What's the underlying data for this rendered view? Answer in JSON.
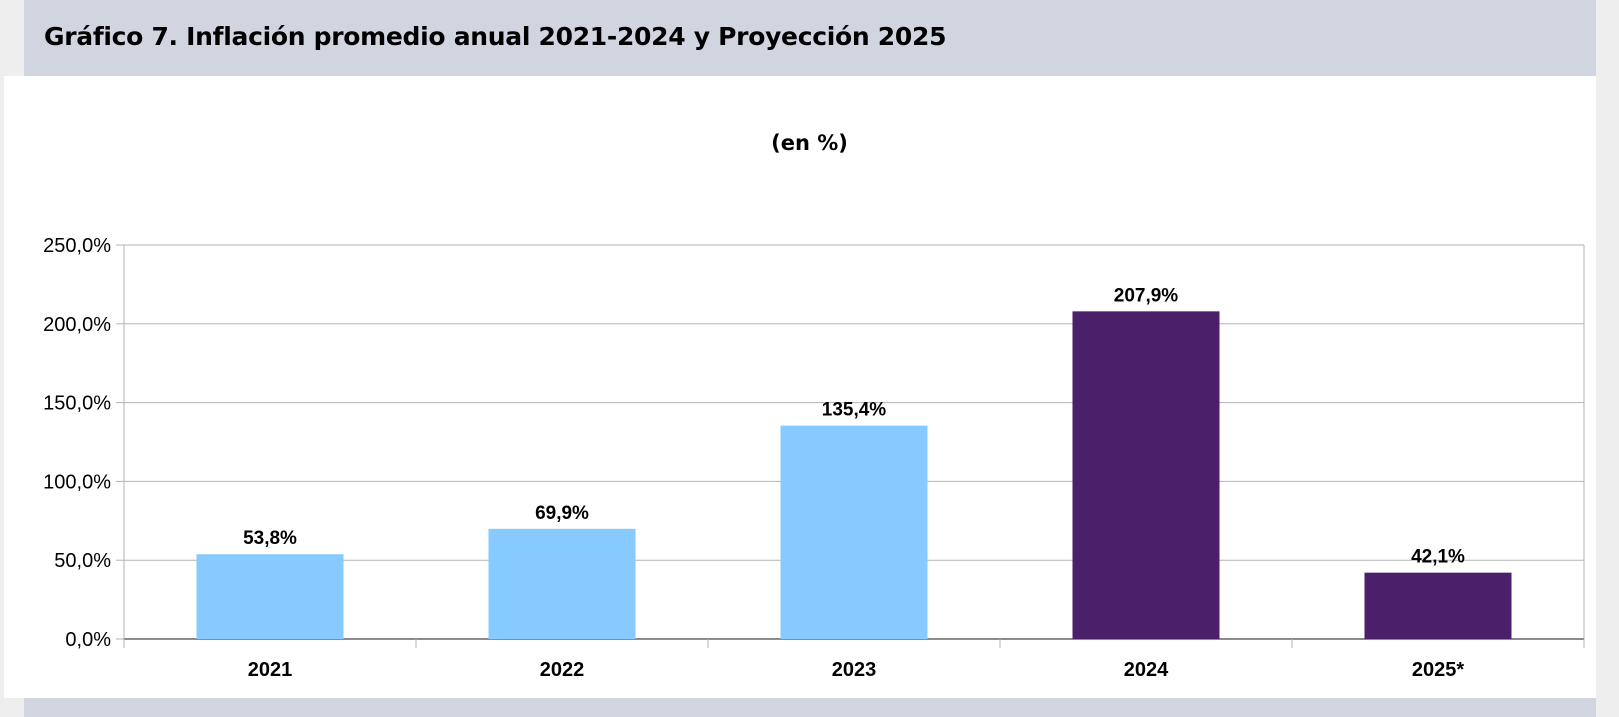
{
  "header": {
    "title": "Gráfico 7. Inflación promedio anual 2021-2024 y Proyección 2025"
  },
  "chart_data": {
    "type": "bar",
    "subtitle": "(en %)",
    "categories": [
      "2021",
      "2022",
      "2023",
      "2024",
      "2025*"
    ],
    "values": [
      53.8,
      69.9,
      135.4,
      207.9,
      42.1
    ],
    "data_labels": [
      "53,8%",
      "69,9%",
      "135,4%",
      "207,9%",
      "42,1%"
    ],
    "bar_colors": [
      "#87caff",
      "#87caff",
      "#87caff",
      "#4b1f6a",
      "#4b1f6a"
    ],
    "ylim": [
      0,
      250
    ],
    "yticks": [
      0,
      50,
      100,
      150,
      200,
      250
    ],
    "ytick_labels": [
      "0,0%",
      "50,0%",
      "100,0%",
      "150,0%",
      "200,0%",
      "250,0%"
    ],
    "xlabel": "",
    "ylabel": "",
    "grid": true,
    "legend": "none"
  }
}
